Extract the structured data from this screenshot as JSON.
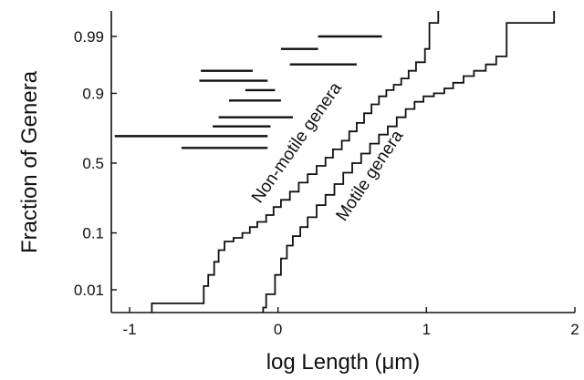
{
  "chart_data": {
    "type": "line",
    "title": "",
    "xlabel": "log Length (μm)",
    "ylabel": "Fraction of Genera",
    "xlim": [
      -1.15,
      2.0
    ],
    "x_ticks": [
      -1,
      0,
      1,
      2
    ],
    "x_tick_labels": [
      "-1",
      "0",
      "1",
      "2"
    ],
    "y_scale": "probit",
    "y_ticks": [
      0.01,
      0.1,
      0.5,
      0.9,
      0.99
    ],
    "y_tick_labels": [
      "0.01",
      "0.1",
      "0.5",
      "0.9",
      "0.99"
    ],
    "grid": false,
    "legend": "none",
    "series": [
      {
        "name": "Non-motile genera",
        "label_text": "Non-motile genera",
        "x": [
          -0.85,
          -0.5,
          -0.47,
          -0.43,
          -0.4,
          -0.36,
          -0.3,
          -0.24,
          -0.19,
          -0.14,
          -0.08,
          -0.03,
          0.02,
          0.08,
          0.14,
          0.2,
          0.26,
          0.32,
          0.37,
          0.43,
          0.48,
          0.53,
          0.58,
          0.63,
          0.68,
          0.73,
          0.78,
          0.83,
          0.88,
          0.93,
          0.99,
          1.02,
          1.08
        ],
        "y": [
          0.005,
          0.012,
          0.02,
          0.035,
          0.055,
          0.075,
          0.085,
          0.1,
          0.12,
          0.14,
          0.17,
          0.21,
          0.25,
          0.3,
          0.36,
          0.42,
          0.48,
          0.54,
          0.6,
          0.66,
          0.72,
          0.77,
          0.82,
          0.86,
          0.89,
          0.91,
          0.925,
          0.94,
          0.955,
          0.968,
          0.982,
          0.995,
          0.999
        ]
      },
      {
        "name": "Motile genera",
        "label_text": "Motile genera",
        "x": [
          -0.1,
          -0.08,
          -0.02,
          0.02,
          0.06,
          0.1,
          0.15,
          0.2,
          0.26,
          0.32,
          0.38,
          0.44,
          0.5,
          0.56,
          0.62,
          0.68,
          0.74,
          0.8,
          0.86,
          0.92,
          0.98,
          1.05,
          1.12,
          1.18,
          1.25,
          1.32,
          1.4,
          1.47,
          1.54,
          1.84,
          1.86
        ],
        "y": [
          0.004,
          0.008,
          0.02,
          0.04,
          0.065,
          0.09,
          0.12,
          0.16,
          0.22,
          0.28,
          0.35,
          0.43,
          0.5,
          0.57,
          0.64,
          0.7,
          0.75,
          0.8,
          0.84,
          0.87,
          0.89,
          0.9,
          0.915,
          0.93,
          0.945,
          0.955,
          0.965,
          0.975,
          0.995,
          0.995,
          0.9995
        ]
      }
    ],
    "intervals": [
      {
        "x_start": -1.1,
        "x_end": -0.07,
        "y": 0.69
      },
      {
        "x_start": -0.65,
        "x_end": -0.07,
        "y": 0.61
      },
      {
        "x_start": -0.44,
        "x_end": -0.05,
        "y": 0.75
      },
      {
        "x_start": -0.4,
        "x_end": 0.1,
        "y": 0.8
      },
      {
        "x_start": -0.33,
        "x_end": 0.02,
        "y": 0.875
      },
      {
        "x_start": -0.22,
        "x_end": -0.02,
        "y": 0.91
      },
      {
        "x_start": -0.53,
        "x_end": -0.07,
        "y": 0.935
      },
      {
        "x_start": -0.52,
        "x_end": -0.17,
        "y": 0.955
      },
      {
        "x_start": 0.08,
        "x_end": 0.53,
        "y": 0.965
      },
      {
        "x_start": 0.02,
        "x_end": 0.27,
        "y": 0.982
      },
      {
        "x_start": 0.27,
        "x_end": 0.7,
        "y": 0.99
      }
    ]
  }
}
